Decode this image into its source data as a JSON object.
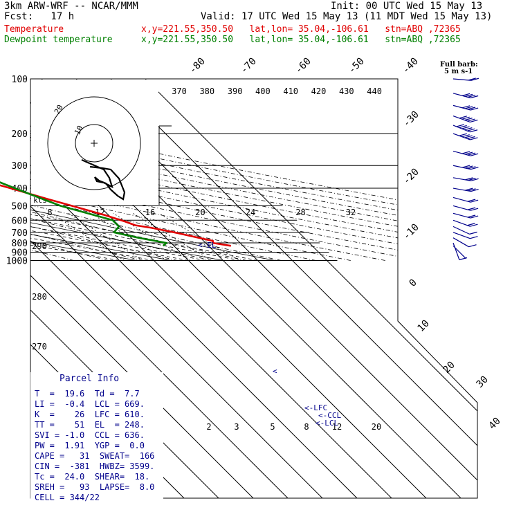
{
  "header": {
    "model": "3km ARW-WRF -- NCAR/MMM",
    "init": "Init: 00 UTC Wed 15 May 13",
    "fcst": "Fcst:   17 h",
    "valid": "Valid: 17 UTC Wed 15 May 13 (11 MDT Wed 15 May 13)",
    "temp_label": "Temperature",
    "temp_loc": "x,y=221.55,350.50   lat,lon= 35.04,-106.61   stn=ABQ ,72365",
    "dew_label": "Dewpoint temperature",
    "dew_loc": "x,y=221.55,350.50   lat,lon= 35.04,-106.61   stn=ABQ ,72365"
  },
  "barb_legend": {
    "line1": "Full barb:",
    "line2": "5 m s-1"
  },
  "hodograph": {
    "kts_label": "kts",
    "ring_labels": [
      "10",
      "20"
    ]
  },
  "lcl_markers": {
    "lfc": "<-LFC",
    "ccl": "<-CCL",
    "lcl": "<-LCL",
    "el": "<-EL"
  },
  "parcel_info": {
    "title": "Parcel Info",
    "rows": [
      "T  =  19.6  Td =  7.7",
      "LI =  -0.4  LCL = 669.",
      "K  =    26  LFC = 610.",
      "TT =    51  EL  = 248.",
      "SVI = -1.0  CCL = 636.",
      "PW =  1.91  YGP =  0.0",
      "CAPE =   31  SWEAT=  166",
      "CIN =  -381  HWBZ= 3599.",
      "Tc =  24.0  SHEAR=  18.",
      "SREH =   93  LAPSE=  8.0",
      "CELL = 344/22"
    ]
  },
  "chart_data": {
    "type": "line",
    "title": "",
    "yaxis": {
      "label": "",
      "scale": "log-pressure",
      "ylim_hPa": [
        1000,
        100
      ],
      "ticks_hPa": [
        100,
        200,
        300,
        400,
        500,
        600,
        700,
        800,
        900,
        1000
      ]
    },
    "isotherm_labels_C": [
      "-80",
      "-70",
      "-60",
      "-50",
      "-40",
      "-30",
      "-20",
      "-10",
      "0",
      "10",
      "20",
      "30",
      "40"
    ],
    "theta_labels_K": [
      "370",
      "380",
      "390",
      "400",
      "410",
      "420",
      "430",
      "440"
    ],
    "hodo_speed_labels": [
      "8",
      "12",
      "16",
      "20",
      "24",
      "28",
      "32"
    ],
    "dry_adiabat_labels_K": [
      "290",
      "280",
      "270"
    ],
    "mixing_ratio_labels": [
      "2",
      "3",
      "5",
      "8",
      "12",
      "20"
    ],
    "series": [
      {
        "name": "Temperature",
        "color": "#e00000",
        "points": [
          [
            830,
            26.5
          ],
          [
            800,
            22.1
          ],
          [
            780,
            22.7
          ],
          [
            700,
            14.0
          ],
          [
            660,
            8.6
          ],
          [
            640,
            4.8
          ],
          [
            610,
            2.9
          ],
          [
            560,
            -1.3
          ],
          [
            500,
            -7.9
          ],
          [
            460,
            -12.8
          ],
          [
            400,
            -20.6
          ],
          [
            350,
            -28.4
          ],
          [
            300,
            -37.1
          ],
          [
            250,
            -46.6
          ],
          [
            200,
            -58.2
          ],
          [
            180,
            -58.8
          ],
          [
            150,
            -54.8
          ],
          [
            120,
            -50.7
          ],
          [
            100,
            -47.1
          ]
        ]
      },
      {
        "name": "Dewpoint temperature",
        "color": "#008000",
        "points": [
          [
            830,
            6.9
          ],
          [
            800,
            8.7
          ],
          [
            750,
            2.1
          ],
          [
            700,
            -3.4
          ],
          [
            650,
            -0.3
          ],
          [
            600,
            -0.3
          ],
          [
            500,
            -11.2
          ],
          [
            420,
            -17.6
          ],
          [
            350,
            -24.0
          ],
          [
            300,
            -34.1
          ],
          [
            280,
            -41.3
          ],
          [
            250,
            -53.2
          ],
          [
            200,
            -66.8
          ],
          [
            180,
            -70.0
          ],
          [
            150,
            -73.0
          ],
          [
            120,
            -71.0
          ],
          [
            100,
            -71.0
          ]
        ]
      }
    ],
    "wind_barbs": [
      {
        "p": 830,
        "dir": 225,
        "spd": 2
      },
      {
        "p": 800,
        "dir": 200,
        "spd": 3
      },
      {
        "p": 750,
        "dir": 240,
        "spd": 4
      },
      {
        "p": 700,
        "dir": 250,
        "spd": 6
      },
      {
        "p": 650,
        "dir": 245,
        "spd": 7
      },
      {
        "p": 600,
        "dir": 250,
        "spd": 8
      },
      {
        "p": 550,
        "dir": 255,
        "spd": 9
      },
      {
        "p": 500,
        "dir": 255,
        "spd": 10
      },
      {
        "p": 450,
        "dir": 255,
        "spd": 12
      },
      {
        "p": 400,
        "dir": 260,
        "spd": 14
      },
      {
        "p": 350,
        "dir": 260,
        "spd": 15
      },
      {
        "p": 300,
        "dir": 258,
        "spd": 18
      },
      {
        "p": 250,
        "dir": 255,
        "spd": 22
      },
      {
        "p": 200,
        "dir": 250,
        "spd": 26
      },
      {
        "p": 180,
        "dir": 248,
        "spd": 28
      },
      {
        "p": 160,
        "dir": 250,
        "spd": 25
      },
      {
        "p": 140,
        "dir": 255,
        "spd": 22
      },
      {
        "p": 120,
        "dir": 255,
        "spd": 18
      },
      {
        "p": 100,
        "dir": 265,
        "spd": 12
      }
    ],
    "hodograph_path": [
      [
        -4,
        -5
      ],
      [
        -3,
        -3.5
      ],
      [
        -2,
        -2
      ],
      [
        -1.5,
        0
      ],
      [
        -3,
        0.5
      ],
      [
        -5,
        1.5
      ],
      [
        -7,
        3
      ],
      [
        -8,
        4
      ],
      [
        -9,
        5
      ],
      [
        -10,
        6
      ],
      [
        -11,
        7
      ],
      [
        -12,
        8
      ],
      [
        -13,
        8.5
      ]
    ],
    "legend": "none"
  }
}
